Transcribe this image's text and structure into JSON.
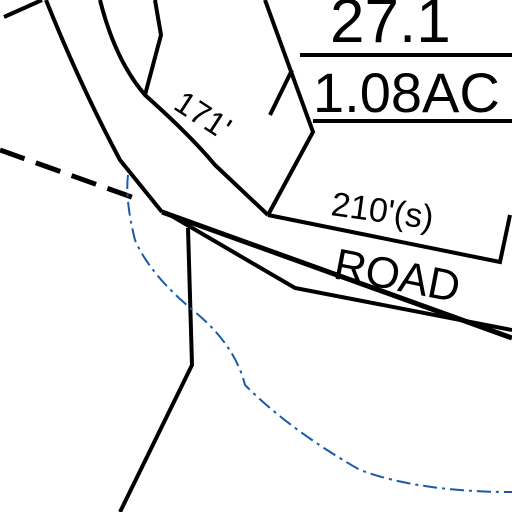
{
  "labels": {
    "parcel_number": "27.1",
    "acreage": "1.08AC",
    "frontage_1": "171'",
    "frontage_2": "210'(s)",
    "road": "ROAD"
  }
}
